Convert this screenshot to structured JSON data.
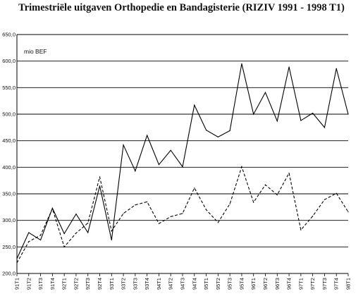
{
  "chart_data": {
    "type": "line",
    "title": "Trimestriële uitgaven Orthopedie en Bandagisterie (RIZIV 1991  - 1998 T1)",
    "unit_label": "mio BEF",
    "ylim": [
      200,
      650
    ],
    "y_ticks": [
      "200,0",
      "250,0",
      "300,0",
      "350,0",
      "400,0",
      "450,0",
      "500,0",
      "550,0",
      "600,0",
      "650,0"
    ],
    "y_tick_values": [
      200,
      250,
      300,
      350,
      400,
      450,
      500,
      550,
      600,
      650
    ],
    "grid": "horizontal",
    "legend": "none",
    "categories": [
      "91T1",
      "91T2",
      "91T3",
      "91T4",
      "92T1",
      "92T2",
      "92T3",
      "92T4",
      "93T1",
      "93T2",
      "93T3",
      "93T4",
      "94T1",
      "94T2",
      "94T3",
      "94T4",
      "95T1",
      "95T2",
      "95T3",
      "95T4",
      "96T1",
      "96T2",
      "96T3",
      "96T4",
      "97T1",
      "97T2",
      "97T3",
      "97T4",
      "98T1"
    ],
    "series": [
      {
        "style": "solid",
        "color": "#000000",
        "values": [
          228,
          277,
          263,
          323,
          275,
          312,
          277,
          365,
          263,
          442,
          393,
          460,
          405,
          432,
          401,
          517,
          470,
          457,
          469,
          595,
          500,
          541,
          487,
          589,
          488,
          502,
          475,
          586,
          500
        ]
      },
      {
        "style": "dashed",
        "color": "#000000",
        "values": [
          220,
          260,
          272,
          322,
          250,
          276,
          295,
          382,
          280,
          313,
          329,
          335,
          294,
          307,
          313,
          361,
          320,
          296,
          331,
          401,
          334,
          367,
          348,
          389,
          282,
          308,
          339,
          351,
          316
        ]
      }
    ]
  }
}
